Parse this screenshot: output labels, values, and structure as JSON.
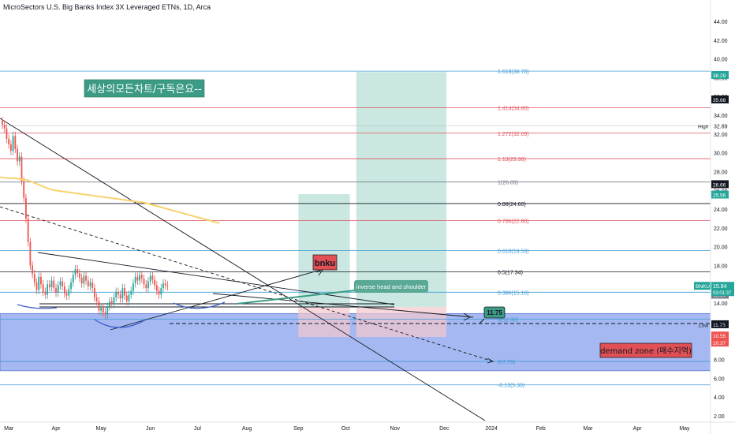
{
  "header": {
    "title": "MicroSectors U.S. Big Banks Index 3X Leveraged ETNs, 1D, Arca"
  },
  "annotations": {
    "korean_banner": "세상의모든차트/구독은요--",
    "ticker_box": "bnku",
    "pattern_label": "inverse head and shoulder",
    "demand_zone": "demand zone (매수지역)",
    "target_label": "11.75"
  },
  "colors": {
    "candle_up": "#26a69a",
    "candle_down": "#ef5350",
    "ma_line": "#f7d26b",
    "demand_zone": "#5b7ee5",
    "target_box": "#9fd6c9",
    "stop_box": "#f4c7cc",
    "banner_bg": "#3c9b85",
    "ticker_bg": "#e05055",
    "fib_blue": "#3e9ad6",
    "fib_red": "#e05561",
    "fib_gray": "#787b86"
  },
  "chart_data": {
    "type": "candlestick",
    "ylim": [
      2,
      46
    ],
    "yticks": [
      "2.00",
      "4.00",
      "6.00",
      "8.00",
      "10.00",
      "12.00",
      "14.00",
      "16.00",
      "18.00",
      "20.00",
      "22.00",
      "24.00",
      "26.00",
      "28.00",
      "30.00",
      "32.00",
      "34.00",
      "36.00",
      "38.00",
      "40.00",
      "42.00",
      "44.00"
    ],
    "xticks": [
      {
        "label": "Mar",
        "idx": 3
      },
      {
        "label": "Apr",
        "idx": 25
      },
      {
        "label": "May",
        "idx": 46
      },
      {
        "label": "Jun",
        "idx": 69
      },
      {
        "label": "Jul",
        "idx": 91
      },
      {
        "label": "Aug",
        "idx": 114
      },
      {
        "label": "Sep",
        "idx": 138
      },
      {
        "label": "Oct",
        "idx": 160
      },
      {
        "label": "Nov",
        "idx": 183
      },
      {
        "label": "Dec",
        "idx": 206
      },
      {
        "label": "2024",
        "idx": 228
      },
      {
        "label": "Feb",
        "idx": 251
      },
      {
        "label": "Mar",
        "idx": 273
      },
      {
        "label": "Apr",
        "idx": 296
      },
      {
        "label": "May",
        "idx": 318
      }
    ],
    "closes": [
      33.0,
      32.6,
      31.5,
      30.9,
      30.2,
      31.8,
      30.4,
      29.1,
      29.6,
      27.0,
      25.2,
      23.0,
      20.5,
      18.0,
      17.1,
      16.2,
      15.4,
      16.8,
      16.0,
      15.2,
      14.9,
      16.0,
      15.7,
      16.4,
      15.6,
      15.1,
      15.9,
      16.3,
      15.8,
      15.0,
      14.8,
      15.5,
      16.2,
      17.0,
      17.6,
      17.2,
      16.7,
      16.1,
      16.9,
      16.4,
      15.8,
      16.2,
      15.6,
      14.6,
      14.2,
      13.2,
      13.5,
      13.0,
      12.8,
      13.6,
      14.2,
      13.9,
      14.6,
      15.2,
      14.9,
      14.5,
      15.6,
      14.8,
      14.2,
      14.9,
      15.3,
      16.1,
      16.8,
      16.4,
      17.0,
      16.6,
      16.0,
      15.6,
      16.3,
      16.9,
      16.5,
      15.9,
      15.3,
      14.9,
      15.6,
      16.1,
      15.9,
      15.8
    ],
    "ma": {
      "start_idx": 0,
      "values": [
        27.4,
        27.3,
        27.3,
        27.2,
        27.1,
        26.8,
        26.5,
        26.2,
        26.0,
        25.9,
        25.8,
        25.7,
        25.6,
        25.5,
        25.4,
        25.3,
        25.2,
        25.1,
        25.0,
        24.9,
        24.8,
        24.7,
        24.5,
        24.3,
        24.1,
        23.9,
        23.7,
        23.5,
        23.3,
        23.1,
        22.9,
        22.7,
        22.5
      ]
    },
    "fib_levels": [
      {
        "label": "1.618(38.70)",
        "value": 38.7,
        "color": "#3e9ad6"
      },
      {
        "label": "1.414(34.80)",
        "value": 34.8,
        "color": "#e05561"
      },
      {
        "label": "1.272(32.09)",
        "value": 32.09,
        "color": "#e05561"
      },
      {
        "label": "1.13(29.38)",
        "value": 29.38,
        "color": "#e05561"
      },
      {
        "label": "1(26.89)",
        "value": 26.89,
        "color": "#787b86"
      },
      {
        "label": "0.88(24.60)",
        "value": 24.6,
        "color": "#131722"
      },
      {
        "label": "0.786(22.80)",
        "value": 22.8,
        "color": "#e05561"
      },
      {
        "label": "0.618(19.59)",
        "value": 19.59,
        "color": "#3e9ad6"
      },
      {
        "label": "0.5(17.34)",
        "value": 17.34,
        "color": "#131722"
      },
      {
        "label": "0.386(15.16)",
        "value": 15.16,
        "color": "#3e9ad6"
      },
      {
        "label": "0(12.30)",
        "value": 12.3,
        "color": "#3e9ad6"
      },
      {
        "label": "0(7.79)",
        "value": 7.79,
        "color": "#3e9ad6"
      },
      {
        "label": "-0.13(5.30)",
        "value": 5.3,
        "color": "#3e9ad6"
      }
    ],
    "price_badges": [
      {
        "label": "38.29",
        "value": 38.29,
        "bg": "#26a69a",
        "fg": "#ffffff"
      },
      {
        "label": "35.68",
        "value": 35.68,
        "bg": "#131722",
        "fg": "#ffffff"
      },
      {
        "label": "26.66",
        "value": 26.66,
        "bg": "#131722",
        "fg": "#ffffff"
      },
      {
        "label": "25.56",
        "value": 25.56,
        "bg": "#26a69a",
        "fg": "#ffffff"
      },
      {
        "label": "15.83",
        "value": 15.7,
        "bg": "#787b86",
        "fg": "#ffffff"
      },
      {
        "label": "15.64",
        "value": 14.9,
        "bg": "#787b86",
        "fg": "#ffffff"
      },
      {
        "label": "11.75",
        "value": 11.75,
        "bg": "#131722",
        "fg": "#ffffff"
      },
      {
        "label": "10.55",
        "value": 10.55,
        "bg": "#ef5350",
        "fg": "#ffffff"
      },
      {
        "label": "10.37",
        "value": 9.8,
        "bg": "#ef5350",
        "fg": "#ffffff"
      }
    ],
    "last_price": {
      "symbol": "BNKU",
      "price": "15.84",
      "countdown": "03:01:37",
      "value": 15.84
    },
    "high_marker": {
      "label": "High",
      "price": "32.89",
      "value": 32.89
    },
    "low_marker": {
      "label": "Low",
      "price": "11.61",
      "value": 11.1
    },
    "demand_zone": {
      "from": 6.8,
      "to": 12.9
    },
    "projection": {
      "box1": {
        "x0": 138,
        "x1": 162,
        "top": 25.6,
        "bottom": 10.4
      },
      "box2": {
        "x0": 165,
        "x1": 207,
        "top": 38.6,
        "bottom": 10.4
      }
    }
  }
}
